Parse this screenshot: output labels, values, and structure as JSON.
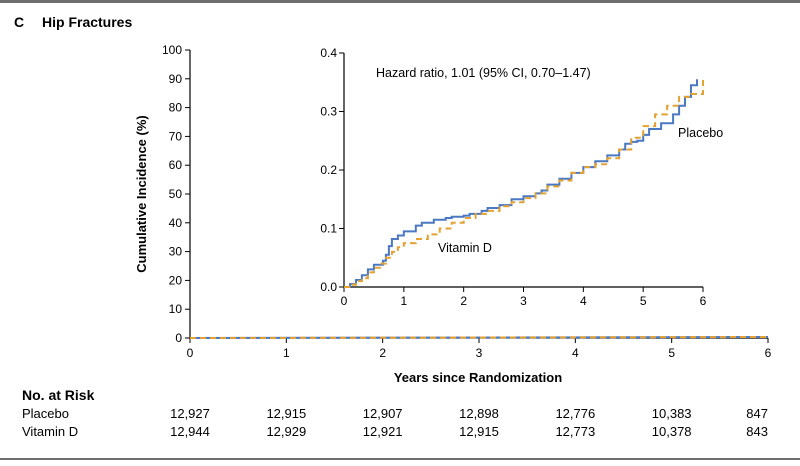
{
  "panel": {
    "letter": "C",
    "title": "Hip Fractures"
  },
  "chart_data": [
    {
      "type": "line",
      "role": "main",
      "xlabel": "Years since Randomization",
      "ylabel": "Cumulative Incidence (%)",
      "xlim": [
        0,
        6
      ],
      "ylim": [
        0,
        100
      ],
      "x_ticks": [
        0,
        1,
        2,
        3,
        4,
        5,
        6
      ],
      "y_ticks": [
        0,
        10,
        20,
        30,
        40,
        50,
        60,
        70,
        80,
        90,
        100
      ],
      "series": [
        {
          "name": "Placebo",
          "color": "#4a78c2",
          "style": "solid",
          "x": [
            0,
            6
          ],
          "y": [
            0,
            0.35
          ]
        },
        {
          "name": "Vitamin D",
          "color": "#e3a232",
          "style": "dashed",
          "x": [
            0,
            6
          ],
          "y": [
            0,
            0.35
          ]
        }
      ]
    },
    {
      "type": "line",
      "role": "inset",
      "annotation": "Hazard ratio, 1.01 (95% CI, 0.70–1.47)",
      "xlim": [
        0,
        6
      ],
      "ylim": [
        0,
        0.4
      ],
      "x_ticks": [
        0,
        1,
        2,
        3,
        4,
        5,
        6
      ],
      "y_ticks": [
        "0.0",
        "0.1",
        "0.2",
        "0.3",
        "0.4"
      ],
      "series": [
        {
          "name": "Placebo",
          "label": "Placebo",
          "color": "#4a78c2",
          "style": "solid",
          "x": [
            0,
            0.05,
            0.1,
            0.2,
            0.3,
            0.4,
            0.5,
            0.6,
            0.65,
            0.7,
            0.75,
            0.8,
            0.9,
            1.0,
            1.1,
            1.2,
            1.3,
            1.5,
            1.7,
            1.8,
            1.9,
            2.0,
            2.1,
            2.3,
            2.4,
            2.6,
            2.8,
            3.0,
            3.2,
            3.3,
            3.4,
            3.6,
            3.8,
            4.0,
            4.2,
            4.4,
            4.6,
            4.7,
            4.8,
            4.9,
            5.0,
            5.1,
            5.3,
            5.5,
            5.6,
            5.7,
            5.8,
            5.9
          ],
          "y": [
            0.0,
            0.0,
            0.005,
            0.012,
            0.02,
            0.03,
            0.038,
            0.038,
            0.045,
            0.055,
            0.07,
            0.082,
            0.088,
            0.095,
            0.095,
            0.105,
            0.11,
            0.115,
            0.118,
            0.12,
            0.12,
            0.122,
            0.125,
            0.13,
            0.135,
            0.14,
            0.15,
            0.155,
            0.16,
            0.165,
            0.175,
            0.185,
            0.195,
            0.205,
            0.215,
            0.225,
            0.235,
            0.245,
            0.248,
            0.25,
            0.26,
            0.27,
            0.28,
            0.295,
            0.31,
            0.325,
            0.345,
            0.355
          ]
        },
        {
          "name": "Vitamin D",
          "label": "Vitamin D",
          "color": "#e3a232",
          "style": "dashed",
          "x": [
            0,
            0.1,
            0.2,
            0.3,
            0.4,
            0.5,
            0.6,
            0.7,
            0.8,
            0.9,
            1.0,
            1.2,
            1.4,
            1.6,
            1.8,
            2.0,
            2.2,
            2.4,
            2.6,
            2.8,
            3.0,
            3.2,
            3.4,
            3.6,
            3.8,
            4.0,
            4.2,
            4.4,
            4.6,
            4.8,
            5.0,
            5.2,
            5.4,
            5.6,
            5.8,
            6.0
          ],
          "y": [
            0.0,
            0.004,
            0.01,
            0.015,
            0.025,
            0.033,
            0.04,
            0.05,
            0.06,
            0.068,
            0.075,
            0.082,
            0.09,
            0.1,
            0.11,
            0.118,
            0.125,
            0.13,
            0.138,
            0.145,
            0.152,
            0.16,
            0.172,
            0.182,
            0.195,
            0.205,
            0.21,
            0.22,
            0.235,
            0.255,
            0.275,
            0.295,
            0.31,
            0.325,
            0.33,
            0.36
          ]
        }
      ]
    }
  ],
  "risk_table": {
    "title": "No. at Risk",
    "rows": [
      {
        "label": "Placebo",
        "values": [
          "12,927",
          "12,915",
          "12,907",
          "12,898",
          "12,776",
          "10,383",
          "847"
        ]
      },
      {
        "label": "Vitamin D",
        "values": [
          "12,944",
          "12,929",
          "12,921",
          "12,915",
          "12,773",
          "10,378",
          "843"
        ]
      }
    ]
  }
}
